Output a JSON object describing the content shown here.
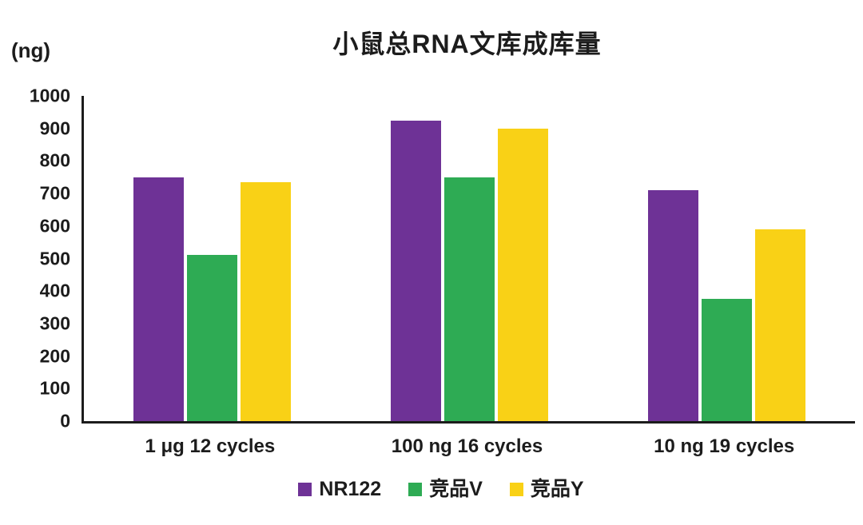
{
  "title": "小鼠总RNA文库成库量",
  "unit_label": "(ng)",
  "chart_data": {
    "type": "bar",
    "title": "小鼠总RNA文库成库量",
    "ylabel": "(ng)",
    "xlabel": "",
    "ylim": [
      0,
      1000
    ],
    "ytick_step": 100,
    "grid": false,
    "legend_position": "bottom",
    "categories": [
      "1 μg 12 cycles",
      "100 ng 16 cycles",
      "10 ng 19 cycles"
    ],
    "series": [
      {
        "name": "NR122",
        "color": "#6E3296",
        "values": [
          750,
          925,
          710
        ]
      },
      {
        "name": "竞品V",
        "color": "#2EAB54",
        "values": [
          510,
          750,
          375
        ]
      },
      {
        "name": "竞品Y",
        "color": "#F9D116",
        "values": [
          735,
          900,
          590
        ]
      }
    ]
  }
}
